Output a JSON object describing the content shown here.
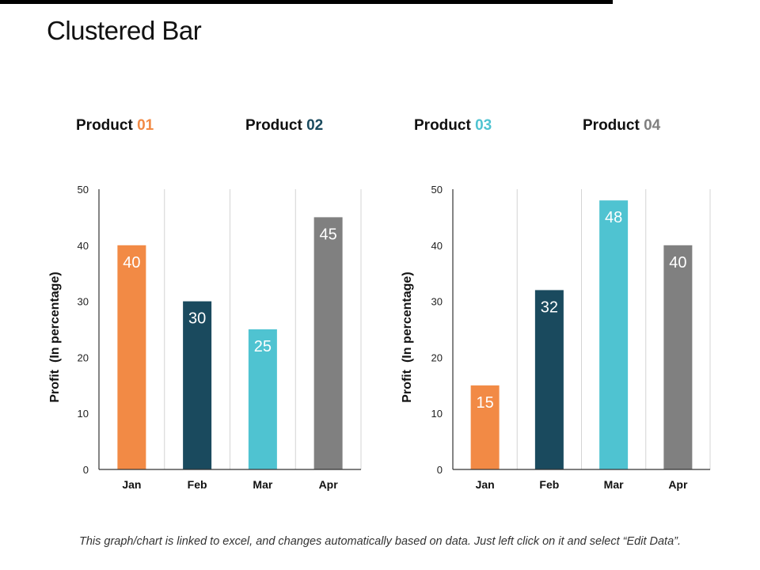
{
  "page": {
    "title": "Clustered Bar",
    "footer": "This graph/chart is linked to excel, and changes automatically based on data. Just left click on it and select “Edit Data”."
  },
  "legend": [
    {
      "prefix": "Product ",
      "number": "01",
      "color": "#F28A45"
    },
    {
      "prefix": "Product ",
      "number": "02",
      "color": "#1A4A5E"
    },
    {
      "prefix": "Product ",
      "number": "03",
      "color": "#4FC3D1"
    },
    {
      "prefix": "Product ",
      "number": "04",
      "color": "#808080"
    }
  ],
  "chart_data": [
    {
      "type": "bar",
      "title": "",
      "xlabel": "",
      "ylabel": "Profit  (In percentage)",
      "ylim": [
        0,
        50
      ],
      "yticks": [
        "0",
        "10",
        "20",
        "30",
        "40",
        "50"
      ],
      "grid": "vertical",
      "categories": [
        "Jan",
        "Feb",
        "Mar",
        "Apr"
      ],
      "values": [
        40,
        30,
        25,
        45
      ],
      "colors": [
        "#F28A45",
        "#1A4A5E",
        "#4FC3D1",
        "#808080"
      ],
      "data_labels": [
        "40",
        "30",
        "25",
        "45"
      ]
    },
    {
      "type": "bar",
      "title": "",
      "xlabel": "",
      "ylabel": "Profit  (In percentage)",
      "ylim": [
        0,
        50
      ],
      "yticks": [
        "0",
        "10",
        "20",
        "30",
        "40",
        "50"
      ],
      "grid": "vertical",
      "categories": [
        "Jan",
        "Feb",
        "Mar",
        "Apr"
      ],
      "values": [
        15,
        32,
        48,
        40
      ],
      "colors": [
        "#F28A45",
        "#1A4A5E",
        "#4FC3D1",
        "#808080"
      ],
      "data_labels": [
        "15",
        "32",
        "48",
        "40"
      ]
    }
  ]
}
